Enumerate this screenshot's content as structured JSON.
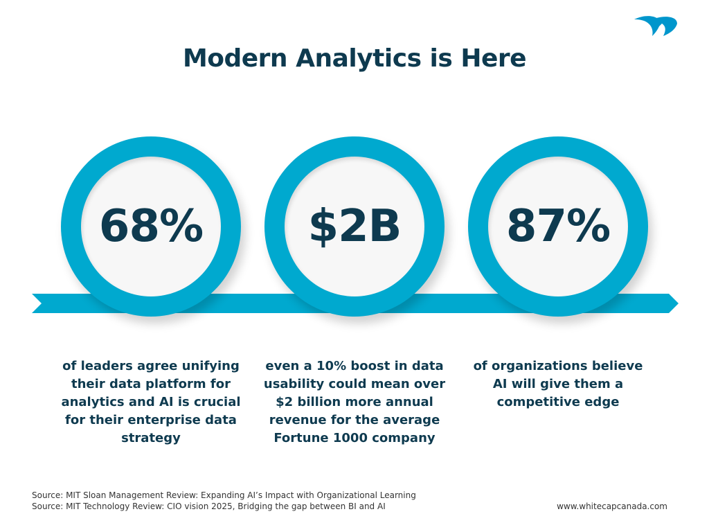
{
  "title": "Modern Analytics is Here",
  "colors": {
    "accent": "#00a9cf",
    "text": "#0e3a4f"
  },
  "logo": {
    "icon": "whitecap-logo-icon"
  },
  "stats": [
    {
      "value": "68%",
      "description": "of leaders agree unifying their data platform for analytics and AI is crucial for their enterprise data strategy"
    },
    {
      "value": "$2B",
      "description": "even a 10% boost in data usability could mean over $2 billion more annual revenue for the average Fortune 1000 company"
    },
    {
      "value": "87%",
      "description": "of organizations believe AI will give them a competitive edge"
    }
  ],
  "sources": [
    "Source: MIT Sloan Management Review: Expanding AI’s Impact with Organizational Learning",
    "Source: MIT Technology Review: CIO vision 2025, Bridging the gap between BI and AI"
  ],
  "website": "www.whitecapcanada.com"
}
